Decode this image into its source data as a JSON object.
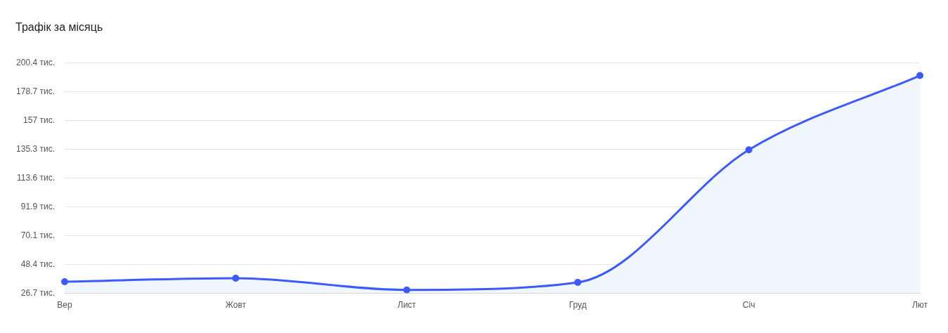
{
  "chart_data": {
    "type": "area",
    "title": "Трафік за місяць",
    "categories": [
      "Вер",
      "Жовт",
      "Лист",
      "Груд",
      "Січ",
      "Лют"
    ],
    "series": [
      {
        "color": "#3d5afe",
        "values": [
          35.5,
          38.1,
          29.3,
          35.0,
          134.8,
          190.7
        ]
      }
    ],
    "ylim": [
      26.7,
      200.4
    ],
    "yticks": [
      {
        "value": 26.7,
        "label": "26.7 тис."
      },
      {
        "value": 48.4,
        "label": "48.4 тис."
      },
      {
        "value": 70.1,
        "label": "70.1 тис."
      },
      {
        "value": 91.9,
        "label": "91.9 тис."
      },
      {
        "value": 113.6,
        "label": "113.6 тис."
      },
      {
        "value": 135.3,
        "label": "135.3 тис."
      },
      {
        "value": 157,
        "label": "157 тис."
      },
      {
        "value": 178.7,
        "label": "178.7 тис."
      },
      {
        "value": 200.4,
        "label": "200.4 тис."
      }
    ],
    "grid": "y",
    "marker": "circle",
    "line_style": "solid"
  }
}
